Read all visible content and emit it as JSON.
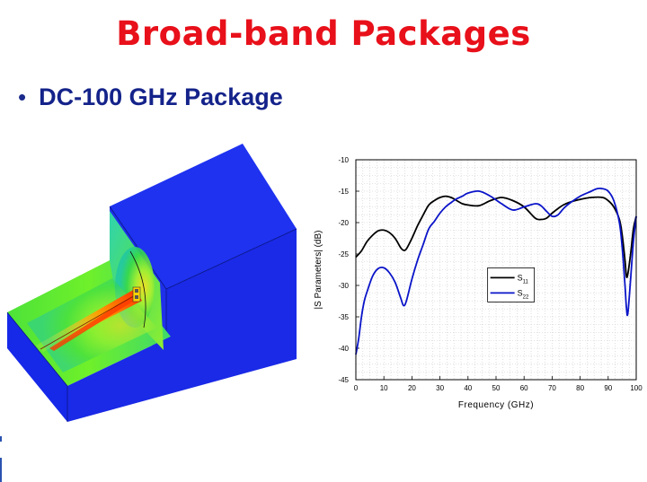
{
  "slide": {
    "title": "Broad-band Packages",
    "bullet": "DC-100 GHz Package"
  },
  "colors": {
    "title": "#e8101a",
    "bullet": "#14238a",
    "s11_line": "#000000",
    "s22_line": "#0a14c8",
    "package_body": "#1428f0"
  },
  "figure": {
    "type": "field-simulation-render",
    "description_shown": "3D package model with electric field magnitude colormap"
  },
  "chart_data": {
    "type": "line",
    "xlabel": "Frequency (GHz)",
    "ylabel": "|S Parameters| (dB)",
    "xlim": [
      0,
      100
    ],
    "ylim": [
      -45,
      -10
    ],
    "xticks": [
      0,
      10,
      20,
      30,
      40,
      50,
      60,
      70,
      80,
      90,
      100
    ],
    "yticks": [
      -10,
      -15,
      -20,
      -25,
      -30,
      -35,
      -40,
      -45
    ],
    "grid": true,
    "legend_position": "center-right",
    "series": [
      {
        "name": "S11",
        "label_main": "S",
        "label_sub": "11",
        "color": "#000000",
        "x": [
          0,
          2,
          4,
          6,
          8,
          10,
          12,
          14,
          16,
          17,
          18,
          20,
          22,
          24,
          26,
          28,
          30,
          32,
          34,
          36,
          38,
          40,
          44,
          48,
          52,
          56,
          60,
          64,
          66,
          68,
          70,
          72,
          74,
          76,
          80,
          84,
          88,
          90,
          92,
          94,
          95,
          96,
          96.5,
          97,
          98,
          99,
          100
        ],
        "y": [
          -25.5,
          -24.5,
          -23,
          -22,
          -21.3,
          -21.2,
          -21.6,
          -22.5,
          -24,
          -24.4,
          -24.2,
          -22.5,
          -20.5,
          -18.8,
          -17.2,
          -16.5,
          -16,
          -15.8,
          -16,
          -16.5,
          -17,
          -17.2,
          -17.3,
          -16.5,
          -16,
          -16.5,
          -17.5,
          -19.3,
          -19.5,
          -19.3,
          -18.5,
          -17.8,
          -17.2,
          -16.8,
          -16.3,
          -16,
          -16,
          -16.5,
          -17.5,
          -19.5,
          -22,
          -26,
          -28.5,
          -28.2,
          -25,
          -21,
          -19
        ]
      },
      {
        "name": "S22",
        "label_main": "S",
        "label_sub": "22",
        "color": "#0a14c8",
        "x": [
          0,
          1,
          2,
          3,
          4,
          6,
          8,
          10,
          12,
          14,
          16,
          17,
          18,
          20,
          22,
          24,
          26,
          28,
          30,
          32,
          34,
          36,
          38,
          40,
          44,
          48,
          52,
          56,
          60,
          64,
          66,
          68,
          70,
          72,
          74,
          76,
          80,
          84,
          86,
          88,
          90,
          92,
          94,
          95,
          96,
          96.5,
          97,
          98,
          99,
          100
        ],
        "y": [
          -41,
          -38.5,
          -35,
          -32.5,
          -31,
          -28.5,
          -27.3,
          -27.2,
          -28,
          -29.5,
          -32,
          -33.2,
          -32.5,
          -29,
          -26,
          -23.5,
          -21,
          -19.8,
          -18.5,
          -17.5,
          -16.8,
          -16.2,
          -15.8,
          -15.3,
          -15,
          -15.8,
          -17,
          -18,
          -17.5,
          -17,
          -17.3,
          -18.2,
          -19,
          -18.8,
          -17.8,
          -17,
          -15.8,
          -15,
          -14.6,
          -14.6,
          -15,
          -16.5,
          -20,
          -24,
          -30,
          -33.5,
          -34.5,
          -29,
          -23,
          -19
        ]
      }
    ]
  }
}
